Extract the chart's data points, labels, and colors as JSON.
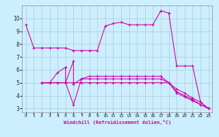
{
  "background_color": "#cceeff",
  "grid_color": "#aacccc",
  "line_color": "#cc00aa",
  "xlabel": "Windchill (Refroidissement éolien,°C)",
  "xlim": [
    -0.5,
    23.5
  ],
  "ylim": [
    2.7,
    11.0
  ],
  "xticks": [
    0,
    1,
    2,
    3,
    4,
    5,
    6,
    7,
    8,
    9,
    10,
    11,
    12,
    13,
    14,
    15,
    16,
    17,
    18,
    19,
    20,
    21,
    22,
    23
  ],
  "yticks": [
    3,
    4,
    5,
    6,
    7,
    8,
    9,
    10
  ],
  "line1_x": [
    0,
    1,
    2,
    3,
    4,
    5,
    6,
    7,
    8,
    9,
    10,
    11,
    12,
    13,
    14,
    15,
    16,
    17,
    18,
    19,
    20,
    21,
    22,
    23
  ],
  "line1_y": [
    9.5,
    7.7,
    7.7,
    7.7,
    7.7,
    7.7,
    7.5,
    7.5,
    7.5,
    7.5,
    9.4,
    9.6,
    9.7,
    9.5,
    9.5,
    9.5,
    9.5,
    10.6,
    10.4,
    6.3,
    6.3,
    6.3,
    3.5,
    3.0
  ],
  "line2_x": [
    2,
    3,
    4,
    5,
    5,
    6,
    7,
    8,
    9,
    10,
    11,
    12,
    13,
    14,
    15,
    16,
    17,
    18,
    19,
    20,
    21,
    22,
    23
  ],
  "line2_y": [
    5.0,
    5.0,
    5.8,
    6.2,
    5.0,
    3.3,
    5.3,
    5.5,
    5.5,
    5.5,
    5.5,
    5.5,
    5.5,
    5.5,
    5.5,
    5.5,
    5.5,
    5.0,
    4.3,
    4.0,
    3.7,
    3.3,
    3.0
  ],
  "line3_x": [
    2,
    3,
    4,
    5,
    6,
    6,
    7,
    8,
    9,
    10,
    11,
    12,
    13,
    14,
    15,
    16,
    17,
    18,
    19,
    20,
    21,
    22,
    23
  ],
  "line3_y": [
    5.0,
    5.0,
    5.0,
    5.0,
    6.7,
    4.9,
    5.3,
    5.3,
    5.3,
    5.3,
    5.3,
    5.3,
    5.3,
    5.3,
    5.3,
    5.3,
    5.3,
    5.0,
    4.5,
    4.2,
    3.8,
    3.5,
    3.0
  ],
  "line4_x": [
    2,
    3,
    4,
    5,
    6,
    7,
    8,
    9,
    10,
    11,
    12,
    13,
    14,
    15,
    16,
    17,
    18,
    19,
    20,
    21,
    22,
    23
  ],
  "line4_y": [
    5.0,
    5.0,
    5.0,
    5.0,
    5.0,
    5.0,
    5.0,
    5.0,
    5.0,
    5.0,
    5.0,
    5.0,
    5.0,
    5.0,
    5.0,
    5.0,
    5.0,
    4.2,
    3.9,
    3.6,
    3.3,
    3.0
  ]
}
